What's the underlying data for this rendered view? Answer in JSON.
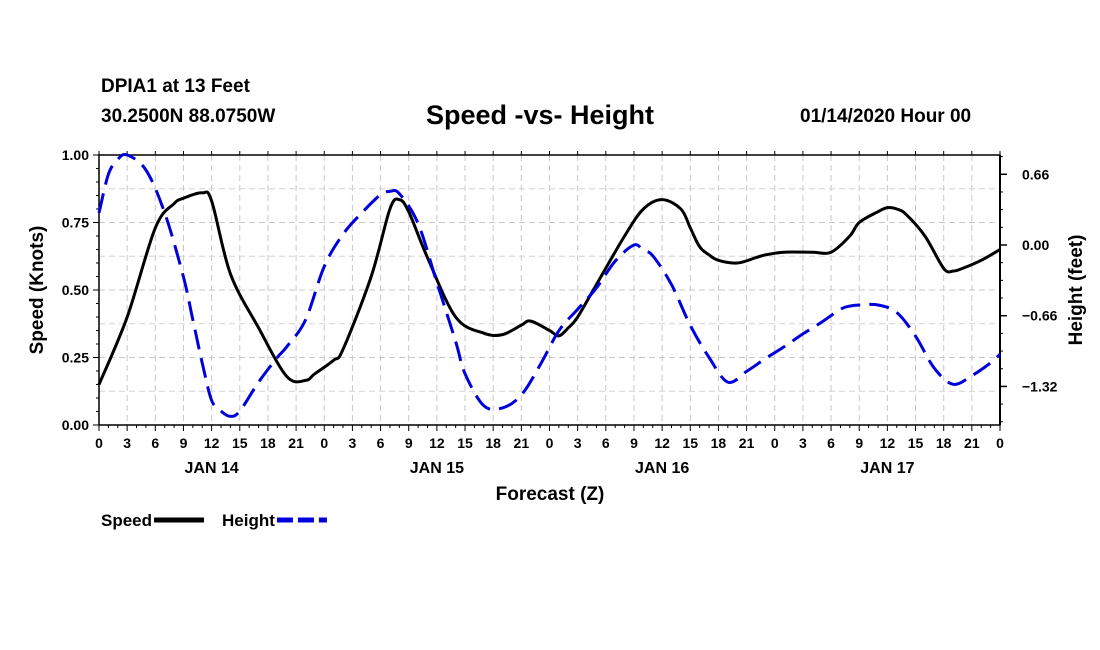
{
  "header": {
    "station": "DPIA1 at 13 Feet",
    "coords": "30.2500N 88.0750W",
    "title": "Speed -vs- Height",
    "timestamp": "01/14/2020 Hour 00"
  },
  "chart_data": {
    "type": "line",
    "title": "Speed -vs- Height",
    "xlabel": "Forecast (Z)",
    "ylabel_left": "Speed (Knots)",
    "ylabel_right": "Height (feet)",
    "x_unit": "hours from 01/14/2020 00Z",
    "xlim": [
      0,
      96
    ],
    "ylim_left": [
      0,
      1
    ],
    "ylim_right": [
      -1.68,
      0.84
    ],
    "left_ticks": [
      "0.00",
      "0.25",
      "0.50",
      "0.75",
      "1.00"
    ],
    "right_ticks": [
      {
        "value": 0.66,
        "label": "0.66"
      },
      {
        "value": 0.0,
        "label": "0.00"
      },
      {
        "value": -0.66,
        "label": "−0.66"
      },
      {
        "value": -1.32,
        "label": "−1.32"
      }
    ],
    "x_tick_labels": [
      "0",
      "3",
      "6",
      "9",
      "12",
      "15",
      "18",
      "21",
      "0",
      "3",
      "6",
      "9",
      "12",
      "15",
      "18",
      "21",
      "0",
      "3",
      "6",
      "9",
      "12",
      "15",
      "18",
      "21",
      "0",
      "3",
      "6",
      "9",
      "12",
      "15",
      "18",
      "21",
      "0"
    ],
    "day_labels": [
      {
        "hour": 12,
        "label": "JAN 14"
      },
      {
        "hour": 36,
        "label": "JAN 15"
      },
      {
        "hour": 60,
        "label": "JAN 16"
      },
      {
        "hour": 84,
        "label": "JAN 17"
      }
    ],
    "grid": true,
    "series": [
      {
        "name": "Speed",
        "axis": "left",
        "color": "#000000",
        "dash": "solid",
        "x": [
          0,
          3,
          6,
          8,
          9,
          11,
          12,
          14,
          17,
          20,
          22,
          23,
          25,
          26,
          29,
          31,
          32,
          33,
          35,
          38,
          41,
          43,
          45,
          46,
          48,
          49,
          50,
          51,
          53,
          56,
          58,
          60,
          62,
          63,
          64,
          65,
          66,
          68,
          70,
          71,
          73,
          76,
          78,
          80,
          81,
          83,
          84,
          85,
          86,
          88,
          90,
          91,
          92,
          94,
          96
        ],
        "y": [
          0.15,
          0.4,
          0.73,
          0.82,
          0.84,
          0.86,
          0.83,
          0.56,
          0.36,
          0.18,
          0.165,
          0.19,
          0.24,
          0.28,
          0.55,
          0.8,
          0.835,
          0.79,
          0.62,
          0.4,
          0.34,
          0.335,
          0.37,
          0.385,
          0.35,
          0.33,
          0.36,
          0.4,
          0.52,
          0.7,
          0.8,
          0.835,
          0.8,
          0.73,
          0.66,
          0.63,
          0.61,
          0.6,
          0.62,
          0.63,
          0.64,
          0.64,
          0.64,
          0.7,
          0.75,
          0.79,
          0.805,
          0.8,
          0.78,
          0.7,
          0.58,
          0.57,
          0.58,
          0.61,
          0.65
        ]
      },
      {
        "name": "Height",
        "axis": "right",
        "color": "#0000dd",
        "dash": "dashed",
        "x": [
          0,
          1,
          2,
          3,
          5,
          7,
          9,
          10,
          11,
          12,
          13,
          14,
          15,
          17,
          19,
          20,
          22,
          24,
          26,
          28,
          30,
          31,
          32,
          34,
          36,
          38,
          39,
          41,
          43,
          45,
          47,
          49,
          51,
          53,
          55,
          57,
          58,
          59,
          61,
          63,
          65,
          67,
          69,
          71,
          73,
          75,
          77,
          79,
          80,
          81,
          83,
          85,
          87,
          89,
          91,
          93,
          95,
          96
        ],
        "y": [
          0.3,
          0.66,
          0.8,
          0.84,
          0.7,
          0.3,
          -0.3,
          -0.7,
          -1.1,
          -1.45,
          -1.55,
          -1.6,
          -1.55,
          -1.28,
          -1.05,
          -0.95,
          -0.7,
          -0.2,
          0.1,
          0.3,
          0.47,
          0.5,
          0.48,
          0.2,
          -0.35,
          -0.9,
          -1.2,
          -1.5,
          -1.52,
          -1.4,
          -1.12,
          -0.8,
          -0.6,
          -0.4,
          -0.15,
          0.0,
          -0.05,
          -0.1,
          -0.37,
          -0.75,
          -1.05,
          -1.28,
          -1.18,
          -1.06,
          -0.95,
          -0.83,
          -0.72,
          -0.6,
          -0.57,
          -0.56,
          -0.56,
          -0.63,
          -0.85,
          -1.15,
          -1.3,
          -1.22,
          -1.1,
          -1.02
        ]
      }
    ],
    "legend": {
      "position": "bottom-left",
      "items": [
        "Speed",
        "Height"
      ]
    }
  }
}
